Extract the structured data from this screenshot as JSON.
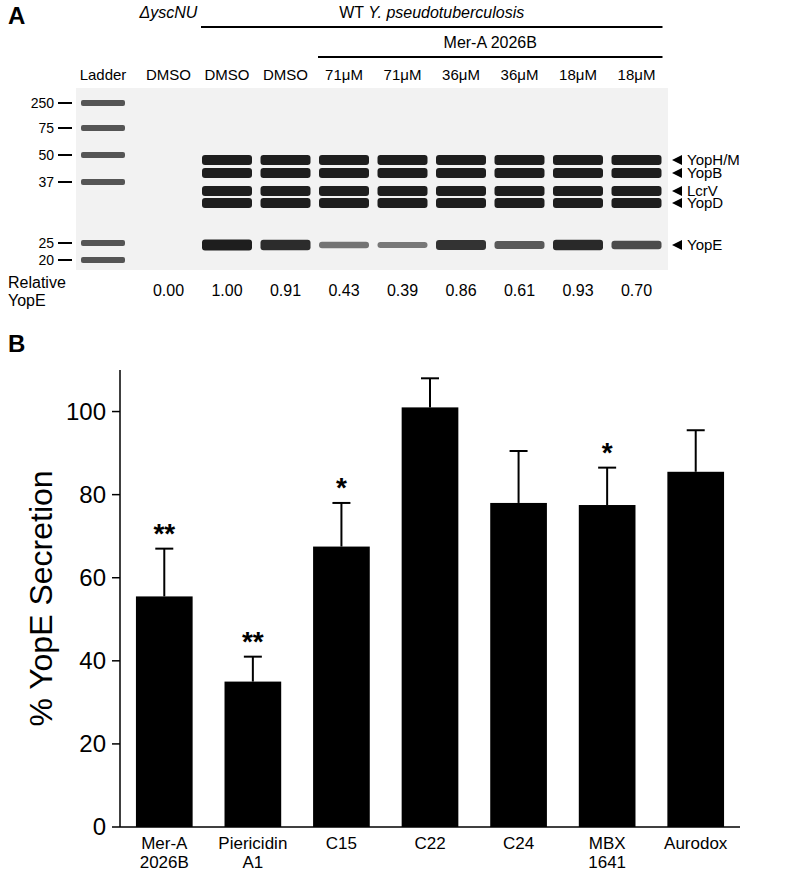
{
  "panel_a": {
    "label": "A",
    "headers": [
      "ΔyscNU",
      "WT Y. pseudotuberculosis",
      "Mer-A 2026B"
    ],
    "lanes": [
      "Ladder",
      "DMSO",
      "DMSO",
      "DMSO",
      "71μM",
      "71μM",
      "36μM",
      "36μM",
      "18μM",
      "18μM"
    ],
    "markers": [
      250,
      75,
      50,
      37,
      25,
      20
    ],
    "bands": [
      "YopH/M",
      "YopB",
      "LcrV",
      "YopD",
      "YopE"
    ],
    "relative_label": "Relative YopE",
    "relative_values": [
      "0.00",
      "1.00",
      "0.91",
      "0.43",
      "0.39",
      "0.86",
      "0.61",
      "0.93",
      "0.70"
    ]
  },
  "chart_data": {
    "type": "bar",
    "panel_label": "B",
    "y_label": "% YopE Secretion",
    "categories": [
      "Mer-A 2026B",
      "Piericidin A1",
      "C15",
      "C22",
      "C24",
      "MBX 1641",
      "Aurodox"
    ],
    "values": [
      55.5,
      35,
      67.5,
      101,
      78,
      77.5,
      85.5
    ],
    "errors": [
      11.5,
      6,
      10.5,
      7,
      12.5,
      9,
      10
    ],
    "significance": [
      "**",
      "**",
      "*",
      null,
      null,
      "*",
      null
    ],
    "color": "#000000",
    "ylim": [
      0,
      110
    ],
    "yticks": [
      0,
      20,
      40,
      60,
      80,
      100
    ],
    "grid": false
  }
}
